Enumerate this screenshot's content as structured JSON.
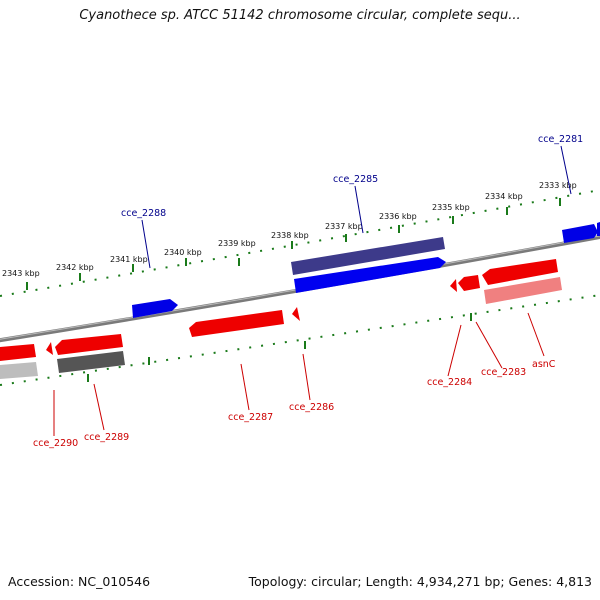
{
  "title": "Cyanothece sp. ATCC 51142 chromosome circular, complete sequ...",
  "footer": {
    "accession": "Accession: NC_010546",
    "summary": "Topology: circular; Length: 4,934,271 bp; Genes: 4,813"
  },
  "colors": {
    "forward_gene": "#0000ee",
    "reverse_gene": "#ee0000",
    "ruler_tick": "#1a7a1a",
    "backbone": "#777777",
    "forward_label": "#00008b",
    "reverse_label": "#cc0000"
  },
  "chart_data": {
    "type": "genome-map",
    "kbp_ticks": [
      {
        "label": "2333 kbp"
      },
      {
        "label": "2334 kbp"
      },
      {
        "label": "2335 kbp"
      },
      {
        "label": "2336 kbp"
      },
      {
        "label": "2337 kbp"
      },
      {
        "label": "2338 kbp"
      },
      {
        "label": "2339 kbp"
      },
      {
        "label": "2340 kbp"
      },
      {
        "label": "2341 kbp"
      },
      {
        "label": "2342 kbp"
      },
      {
        "label": "2343 kbp"
      }
    ],
    "forward_labels": [
      {
        "name": "cce_2281"
      },
      {
        "name": "cce_2285"
      },
      {
        "name": "cce_2288"
      }
    ],
    "reverse_labels": [
      {
        "name": "asnC"
      },
      {
        "name": "cce_2283"
      },
      {
        "name": "cce_2284"
      },
      {
        "name": "cce_2286"
      },
      {
        "name": "cce_2287"
      },
      {
        "name": "cce_2289"
      },
      {
        "name": "cce_2290"
      }
    ]
  }
}
